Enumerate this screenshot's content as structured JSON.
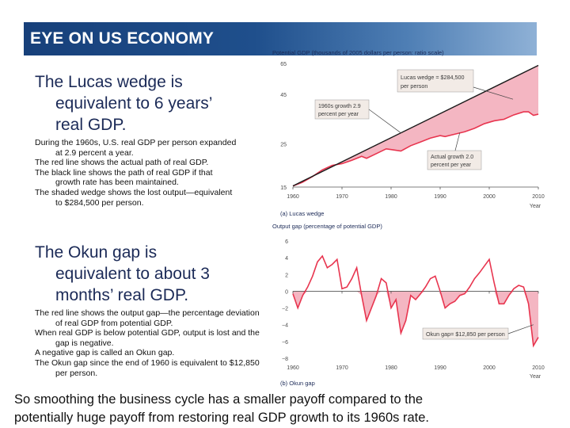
{
  "header": {
    "title": "EYE ON US ECONOMY"
  },
  "section1": {
    "heading_lines": [
      "The Lucas wedge is",
      "equivalent to 6 years’",
      "real GDP."
    ],
    "bullets": [
      "During the 1960s, U.S. real GDP per person expanded at 2.9 percent a year.",
      "The red line shows the actual path of real GDP.",
      "The black line shows the path of real GDP if that growth rate has been maintained.",
      "The shaded wedge shows the lost output—equivalent to $284,500 per person."
    ]
  },
  "section2": {
    "heading_lines": [
      "The Okun gap is",
      "equivalent to about 3",
      "months’ real GDP."
    ],
    "bullets": [
      "The red line shows the output gap—the percentage deviation of real GDP from potential GDP.",
      "When real GDP is below potential GDP, output is lost and the gap is negative.",
      "A negative gap is called an Okun gap.",
      "The Okun gap since the end of 1960 is equivalent to $12,850 per person."
    ]
  },
  "footer": {
    "lines": [
      "So smoothing the business cycle has a smaller payoff compared to the",
      "potentially huge payoff from restoring real GDP growth to its 1960s rate."
    ]
  },
  "chart_data": [
    {
      "type": "line",
      "title": "Potential GDP (thousands of 2005 dollars per person: ratio scale)",
      "caption": "(a) Lucas wedge",
      "xlabel": "Year",
      "yscale": "log",
      "xlim": [
        1960,
        2010
      ],
      "ylim": [
        15,
        65
      ],
      "x_ticks": [
        1960,
        1970,
        1980,
        1990,
        2000,
        2010
      ],
      "y_ticks": [
        15,
        25,
        45,
        65
      ],
      "series": [
        {
          "name": "1960s growth 2.9 percent per year",
          "color": "#1a1a1a",
          "x": [
            1960,
            2010
          ],
          "y": [
            15.2,
            63.5
          ]
        },
        {
          "name": "Actual growth 2.0 percent per year",
          "color": "#e8354f",
          "x": [
            1960,
            1962,
            1964,
            1966,
            1968,
            1970,
            1972,
            1974,
            1975,
            1977,
            1979,
            1980,
            1982,
            1984,
            1986,
            1988,
            1990,
            1991,
            1993,
            1995,
            1997,
            1999,
            2001,
            2003,
            2005,
            2007,
            2008,
            2009,
            2010
          ],
          "y": [
            15.2,
            15.9,
            17.0,
            18.4,
            19.4,
            19.8,
            20.6,
            21.6,
            21.1,
            22.3,
            23.6,
            23.4,
            23.0,
            24.5,
            25.6,
            26.8,
            27.6,
            27.3,
            28.1,
            28.9,
            30.1,
            31.8,
            32.9,
            33.5,
            35.3,
            36.6,
            36.6,
            35.1,
            35.6
          ]
        }
      ],
      "fill_between": {
        "color": "#f4b6c2"
      },
      "annotations": [
        {
          "text_lines": [
            "Lucas wedge = $284,500",
            "per person"
          ]
        },
        {
          "text_lines": [
            "1960s growth 2.9",
            "percent per year"
          ]
        },
        {
          "text_lines": [
            "Actual growth 2.0",
            "percent per year"
          ]
        }
      ]
    },
    {
      "type": "line",
      "title": "Output gap (percentage of potential GDP)",
      "caption": "(b) Okun gap",
      "xlabel": "Year",
      "xlim": [
        1960,
        2010
      ],
      "ylim": [
        -8,
        6
      ],
      "x_ticks": [
        1960,
        1970,
        1980,
        1990,
        2000,
        2010
      ],
      "y_ticks": [
        -8,
        -6,
        -4,
        -2,
        0,
        2,
        4,
        6
      ],
      "series": [
        {
          "name": "Output gap",
          "color": "#e8354f",
          "x": [
            1960,
            1961,
            1962,
            1963,
            1964,
            1965,
            1966,
            1967,
            1968,
            1969,
            1970,
            1971,
            1972,
            1973,
            1974,
            1975,
            1976,
            1977,
            1978,
            1979,
            1980,
            1981,
            1982,
            1983,
            1984,
            1985,
            1986,
            1987,
            1988,
            1989,
            1990,
            1991,
            1992,
            1993,
            1994,
            1995,
            1996,
            1997,
            1998,
            1999,
            2000,
            2001,
            2002,
            2003,
            2004,
            2005,
            2006,
            2007,
            2008,
            2009,
            2010
          ],
          "y": [
            -0.3,
            -2.0,
            -0.5,
            0.5,
            1.8,
            3.5,
            4.2,
            2.8,
            3.2,
            3.8,
            0.3,
            0.5,
            1.5,
            2.8,
            -0.5,
            -3.5,
            -2.0,
            -0.5,
            1.5,
            1.0,
            -2.0,
            -1.0,
            -5.0,
            -3.5,
            -0.5,
            -1.0,
            -0.3,
            0.5,
            1.5,
            1.8,
            0.0,
            -2.0,
            -1.5,
            -1.2,
            -0.5,
            -0.3,
            0.5,
            1.5,
            2.2,
            3.0,
            3.8,
            1.0,
            -1.5,
            -1.5,
            -0.5,
            0.3,
            0.7,
            0.5,
            -1.5,
            -6.5,
            -5.5
          ]
        }
      ],
      "annotations": [
        {
          "text_lines": [
            "Okun gap= $12,850 per person"
          ]
        }
      ]
    }
  ]
}
